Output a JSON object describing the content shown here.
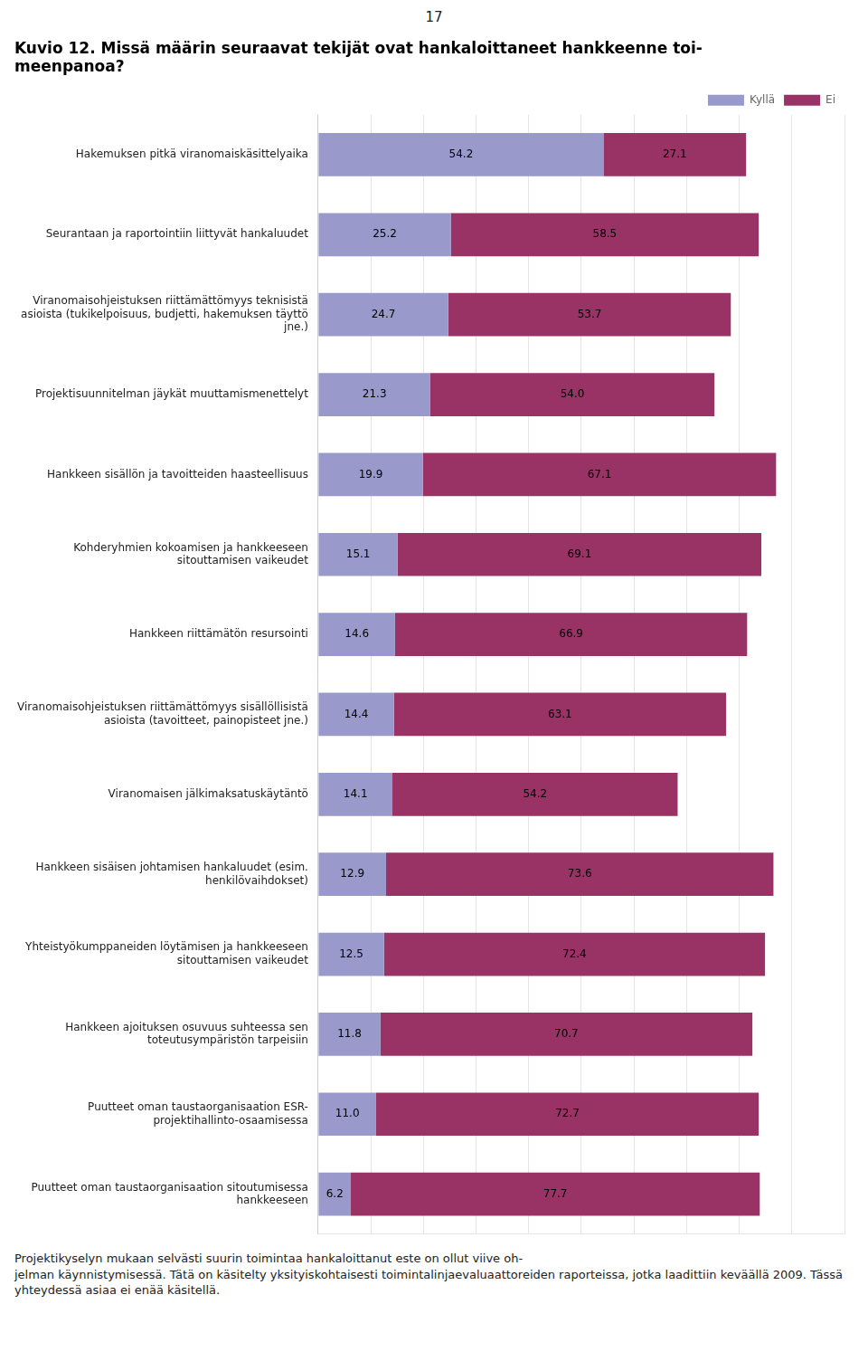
{
  "chart_data": {
    "type": "bar",
    "orientation": "horizontal",
    "stacked": true,
    "title": [
      "Kuvio 12. Missä määrin seuraavat tekijät ovat hankaloittaneet hankkeenne toi-",
      "meenpanoa?"
    ],
    "annotations": [
      "17",
      "Projektikyselyn mukaan selvästi suurin toimintaa hankaloittanut este on ollut viive oh-",
      "jelman käynnistymisessä. Tätä on käsitelty yksityiskohtaisesti toimintalinjaevaluaattoreiden raporteissa, jotka laadittiin keväällä 2009. Tässä yhteydessä asiaa ei enää käsitellä."
    ],
    "categories": [
      "Hakemuksen pitkä viranomaiskäsittelyaika",
      "Seurantaan ja raportointiin liittyvät hankaluudet",
      "Viranomaisohjeistuksen riittämättömyys teknisistä\nasioista (tukikelpoisuus, budjetti, hakemuksen täyttö\njne.)",
      "Projektisuunnitelman jäykät muuttamismenettelyt",
      "Hankkeen sisällön ja tavoitteiden haasteellisuus",
      "Kohderyhmien kokoamisen ja hankkeeseen\nsitouttamisen vaikeudet",
      "Hankkeen riittämätön resursointi",
      "Viranomaisohjeistuksen riittämättömyys sisällöllisistä\nasioista (tavoitteet, painopisteet jne.)",
      "Viranomaisen jälkimaksatuskäytäntö",
      "Hankkeen sisäisen johtamisen hankaluudet (esim.\nhenkilövaihdokset)",
      "Yhteistyökumppaneiden löytämisen ja hankkeeseen\nsitouttamisen vaikeudet",
      "Hankkeen ajoituksen osuvuus suhteessa sen\ntoteutusympäristön tarpeisiin",
      "Puutteet oman taustaorganisaation ESR-\nprojektihallinto-osaamisessa",
      "Puutteet oman taustaorganisaation sitoutumisessa\nhankkeeseen"
    ],
    "series": [
      {
        "name": "Kyllä",
        "color": "#9999CC",
        "values": [
          54.2,
          25.2,
          24.7,
          21.3,
          19.9,
          15.1,
          14.6,
          14.4,
          14.1,
          12.9,
          12.5,
          11.8,
          11.0,
          6.2
        ],
        "value_labels": [
          "54.2",
          "25.2",
          "24.7",
          "21.3",
          "19.9",
          "15.1",
          "14.6",
          "14.4",
          "14.1",
          "12.9",
          "12.5",
          "11.8",
          "11.0",
          "6.2"
        ]
      },
      {
        "name": "Ei",
        "color": "#993366",
        "values": [
          27.1,
          58.5,
          53.7,
          54.0,
          67.1,
          69.1,
          66.9,
          63.1,
          54.2,
          73.6,
          72.4,
          70.7,
          72.7,
          77.7
        ],
        "value_labels": [
          "27.1",
          "58.5",
          "53.7",
          "54.0",
          "67.1",
          "69.1",
          "66.9",
          "63.1",
          "54.2",
          "73.6",
          "72.4",
          "70.7",
          "72.7",
          "77.7"
        ]
      }
    ],
    "xlim": [
      0,
      100
    ],
    "xticks": [
      0,
      10,
      20,
      30,
      40,
      50,
      60,
      70,
      80,
      90,
      100
    ],
    "grid": true,
    "legend": "upper right",
    "data_labels": true,
    "tick_labels": "y"
  }
}
